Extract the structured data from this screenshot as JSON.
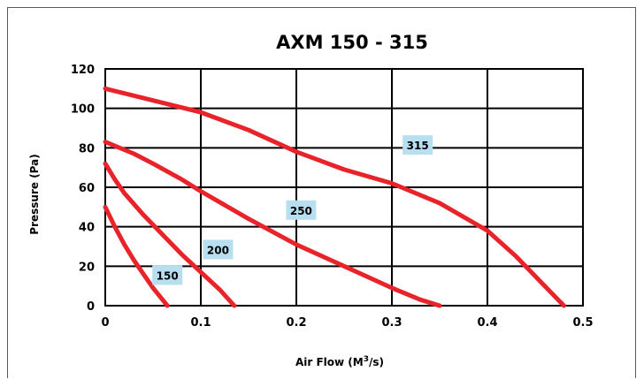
{
  "chart_data": {
    "type": "line",
    "title": "AXM 150 - 315",
    "xlabel": "Air Flow (M",
    "xlabel_sup": "3",
    "xlabel_suffix": "/s)",
    "ylabel": "Pressure (Pa)",
    "xlim": [
      0,
      0.5
    ],
    "ylim": [
      0,
      120
    ],
    "x_ticks": [
      "0",
      "0.1",
      "0.2",
      "0.3",
      "0.4",
      "0.5"
    ],
    "y_ticks": [
      "0",
      "20",
      "40",
      "60",
      "80",
      "100",
      "120"
    ],
    "grid": true,
    "legend": "none",
    "series_color": "#e8232a",
    "label_box_color": "#b7dff0",
    "series": [
      {
        "name": "150",
        "label_at": [
          0.065,
          15
        ],
        "x": [
          0,
          0.01,
          0.02,
          0.03,
          0.04,
          0.05,
          0.06,
          0.065
        ],
        "y": [
          50,
          40,
          31,
          23,
          16,
          9,
          3,
          0
        ]
      },
      {
        "name": "200",
        "label_at": [
          0.118,
          28
        ],
        "x": [
          0,
          0.01,
          0.02,
          0.04,
          0.06,
          0.08,
          0.1,
          0.12,
          0.135
        ],
        "y": [
          72,
          64,
          57,
          46,
          36,
          26,
          17,
          8,
          0
        ]
      },
      {
        "name": "250",
        "label_at": [
          0.205,
          48
        ],
        "x": [
          0,
          0.03,
          0.05,
          0.08,
          0.1,
          0.15,
          0.2,
          0.25,
          0.3,
          0.33,
          0.35
        ],
        "y": [
          83,
          77,
          72,
          64,
          58,
          44,
          31,
          20,
          9,
          3,
          0
        ]
      },
      {
        "name": "315",
        "label_at": [
          0.327,
          81
        ],
        "x": [
          0,
          0.05,
          0.1,
          0.15,
          0.2,
          0.25,
          0.3,
          0.35,
          0.4,
          0.43,
          0.46,
          0.48
        ],
        "y": [
          110,
          104,
          98,
          89,
          78,
          69,
          62,
          52,
          38,
          25,
          10,
          0
        ]
      }
    ]
  }
}
